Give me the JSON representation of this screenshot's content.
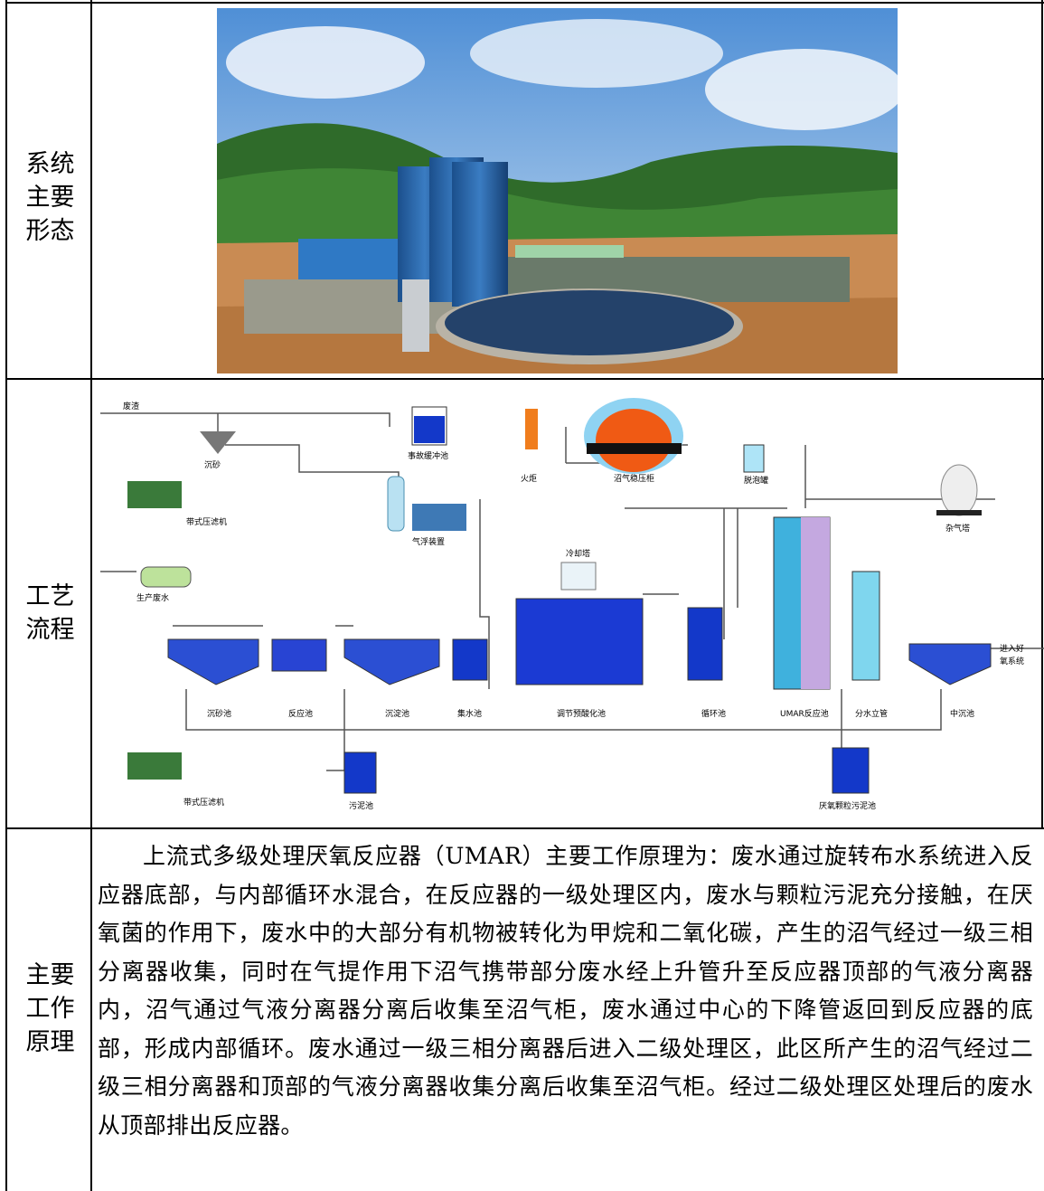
{
  "rows": [
    {
      "label": "系统主要形态"
    },
    {
      "label": "工艺流程"
    },
    {
      "label": "主要工作原理"
    }
  ],
  "row_labels": {
    "r1": [
      "系统",
      "主要",
      "形态"
    ],
    "r2": [
      "工艺",
      "流程"
    ],
    "r3": [
      "主要",
      "工作",
      "原理"
    ]
  },
  "diagram": {
    "labels": {
      "feishui": "废渣",
      "sishai": "沉砂",
      "shigu": "事故缓冲池",
      "daishi_top": "带式压滤机",
      "qifu": "气浮装置",
      "huoju": "火炬",
      "zhaoqigui": "沼气稳压柜",
      "tuopao": "脱泡罐",
      "zaqi": "杂气塔",
      "lengque": "冷却塔",
      "shengchan": "生产废水",
      "chenshachi": "沉砂池",
      "fanyingchi": "反应池",
      "chendianchi": "沉淀池",
      "jishuichi": "集水池",
      "tiaojie": "调节预酸化池",
      "xunhuan": "循环池",
      "umar": "UMAR反应池",
      "fenshui": "分水立管",
      "zhongchen": "中沉池",
      "jinru": "进入好",
      "yangxitong": "氧系统",
      "daishi_bottom": "带式压滤机",
      "wuni": "污泥池",
      "yanyang": "厌氧颗粒污泥池"
    }
  },
  "principle": "上流式多级处理厌氧反应器（UMAR）主要工作原理为：废水通过旋转布水系统进入反应器底部，与内部循环水混合，在反应器的一级处理区内，废水与颗粒污泥充分接触，在厌氧菌的作用下，废水中的大部分有机物被转化为甲烷和二氧化碳，产生的沼气经过一级三相分离器收集，同时在气提作用下沼气携带部分废水经上升管升至反应器顶部的气液分离器内，沼气通过气液分离器分离后收集至沼气柜，废水通过中心的下降管返回到反应器的底部，形成内部循环。废水通过一级三相分离器后进入二级处理区，此区所产生的沼气经过二级三相分离器和顶部的气液分离器收集分离后收集至沼气柜。经过二级处理区处理后的废水从顶部排出反应器。"
}
